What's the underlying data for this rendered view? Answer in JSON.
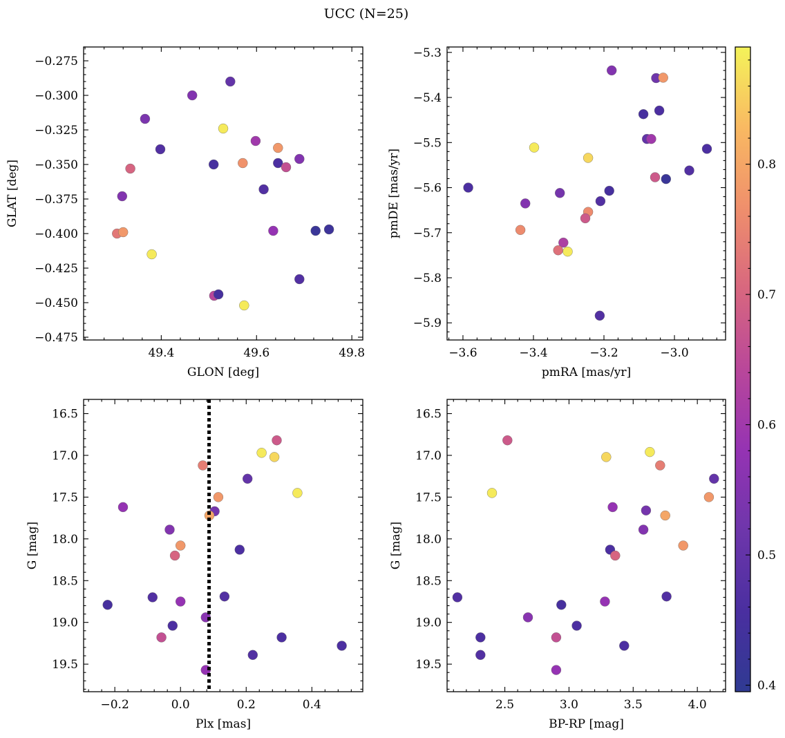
{
  "title": "UCC (N=25)",
  "colormap": {
    "name": "plasma",
    "range": [
      0.395,
      0.89
    ],
    "ticks": [
      0.4,
      0.5,
      0.6,
      0.7,
      0.8
    ],
    "tick_labels": [
      "0.4",
      "0.5",
      "0.6",
      "0.7",
      "0.8"
    ],
    "stops": [
      "#2f3a92",
      "#4a2fa0",
      "#6e36ab",
      "#9533b3",
      "#b9479a",
      "#d8677f",
      "#ef8f6c",
      "#f9b962",
      "#f4f35a"
    ]
  },
  "chart_data": [
    {
      "type": "scatter",
      "id": "glon-glat",
      "xlabel": "GLON [deg]",
      "ylabel": "GLAT [deg]",
      "xlim": [
        49.237,
        49.823
      ],
      "ylim": [
        -0.477,
        -0.265
      ],
      "y_inverted": false,
      "xticks": [
        49.4,
        49.6,
        49.8
      ],
      "xtick_labels": [
        "49.4",
        "49.6",
        "49.8"
      ],
      "yticks": [
        -0.475,
        -0.45,
        -0.425,
        -0.4,
        -0.375,
        -0.35,
        -0.325,
        -0.3,
        -0.275
      ],
      "ytick_labels": [
        "−0.475",
        "−0.450",
        "−0.425",
        "−0.400",
        "−0.375",
        "−0.350",
        "−0.325",
        "−0.300",
        "−0.275"
      ],
      "points": [
        {
          "x": 49.545,
          "y": -0.29,
          "c": 0.5
        },
        {
          "x": 49.465,
          "y": -0.3,
          "c": 0.55
        },
        {
          "x": 49.366,
          "y": -0.317,
          "c": 0.54
        },
        {
          "x": 49.53,
          "y": -0.324,
          "c": 0.88
        },
        {
          "x": 49.398,
          "y": -0.339,
          "c": 0.47
        },
        {
          "x": 49.598,
          "y": -0.333,
          "c": 0.6
        },
        {
          "x": 49.645,
          "y": -0.338,
          "c": 0.78
        },
        {
          "x": 49.69,
          "y": -0.346,
          "c": 0.55
        },
        {
          "x": 49.51,
          "y": -0.35,
          "c": 0.45
        },
        {
          "x": 49.571,
          "y": -0.349,
          "c": 0.77
        },
        {
          "x": 49.645,
          "y": -0.349,
          "c": 0.46
        },
        {
          "x": 49.662,
          "y": -0.352,
          "c": 0.66
        },
        {
          "x": 49.335,
          "y": -0.353,
          "c": 0.7
        },
        {
          "x": 49.615,
          "y": -0.368,
          "c": 0.47
        },
        {
          "x": 49.318,
          "y": -0.373,
          "c": 0.55
        },
        {
          "x": 49.307,
          "y": -0.4,
          "c": 0.73
        },
        {
          "x": 49.32,
          "y": -0.399,
          "c": 0.78
        },
        {
          "x": 49.635,
          "y": -0.398,
          "c": 0.58
        },
        {
          "x": 49.724,
          "y": -0.398,
          "c": 0.42
        },
        {
          "x": 49.752,
          "y": -0.397,
          "c": 0.43
        },
        {
          "x": 49.38,
          "y": -0.415,
          "c": 0.88
        },
        {
          "x": 49.69,
          "y": -0.433,
          "c": 0.47
        },
        {
          "x": 49.511,
          "y": -0.445,
          "c": 0.64
        },
        {
          "x": 49.52,
          "y": -0.444,
          "c": 0.45
        },
        {
          "x": 49.574,
          "y": -0.452,
          "c": 0.88
        }
      ]
    },
    {
      "type": "scatter",
      "id": "pmra-pmde",
      "xlabel": "pmRA [mas/yr]",
      "ylabel": "pmDE [mas/yr]",
      "xlim": [
        -3.645,
        -2.855
      ],
      "ylim": [
        -5.938,
        -5.288
      ],
      "y_inverted": false,
      "xticks": [
        -3.6,
        -3.4,
        -3.2,
        -3.0
      ],
      "xtick_labels": [
        "−3.6",
        "−3.4",
        "−3.2",
        "−3.0"
      ],
      "yticks": [
        -5.9,
        -5.8,
        -5.7,
        -5.6,
        -5.5,
        -5.4,
        -5.3
      ],
      "ytick_labels": [
        "−5.9",
        "−5.8",
        "−5.7",
        "−5.6",
        "−5.5",
        "−5.4",
        "−5.3"
      ],
      "points": [
        {
          "x": -3.178,
          "y": -5.34,
          "c": 0.55
        },
        {
          "x": -3.052,
          "y": -5.357,
          "c": 0.52
        },
        {
          "x": -3.032,
          "y": -5.356,
          "c": 0.78
        },
        {
          "x": -3.043,
          "y": -5.429,
          "c": 0.46
        },
        {
          "x": -3.088,
          "y": -5.437,
          "c": 0.45
        },
        {
          "x": -3.078,
          "y": -5.492,
          "c": 0.5
        },
        {
          "x": -3.066,
          "y": -5.492,
          "c": 0.6
        },
        {
          "x": -3.398,
          "y": -5.511,
          "c": 0.88
        },
        {
          "x": -2.908,
          "y": -5.514,
          "c": 0.46
        },
        {
          "x": -3.245,
          "y": -5.534,
          "c": 0.86
        },
        {
          "x": -2.958,
          "y": -5.562,
          "c": 0.47
        },
        {
          "x": -3.055,
          "y": -5.577,
          "c": 0.68
        },
        {
          "x": -3.024,
          "y": -5.581,
          "c": 0.42
        },
        {
          "x": -3.585,
          "y": -5.6,
          "c": 0.46
        },
        {
          "x": -3.185,
          "y": -5.607,
          "c": 0.45
        },
        {
          "x": -3.325,
          "y": -5.612,
          "c": 0.53
        },
        {
          "x": -3.21,
          "y": -5.63,
          "c": 0.47
        },
        {
          "x": -3.423,
          "y": -5.635,
          "c": 0.55
        },
        {
          "x": -3.245,
          "y": -5.654,
          "c": 0.76
        },
        {
          "x": -3.253,
          "y": -5.668,
          "c": 0.68
        },
        {
          "x": -3.437,
          "y": -5.694,
          "c": 0.76
        },
        {
          "x": -3.315,
          "y": -5.722,
          "c": 0.62
        },
        {
          "x": -3.33,
          "y": -5.739,
          "c": 0.72
        },
        {
          "x": -3.303,
          "y": -5.742,
          "c": 0.88
        },
        {
          "x": -3.212,
          "y": -5.884,
          "c": 0.47
        }
      ]
    },
    {
      "type": "scatter",
      "id": "plx-g",
      "xlabel": "Plx [mas]",
      "ylabel": "G [mag]",
      "xlim": [
        -0.295,
        0.555
      ],
      "ylim": [
        16.33,
        19.83
      ],
      "y_inverted": true,
      "vline": {
        "x": 0.087,
        "style": "dotted",
        "color": "#000000"
      },
      "xticks": [
        -0.2,
        0.0,
        0.2,
        0.4
      ],
      "xtick_labels": [
        "−0.2",
        "0.0",
        "0.2",
        "0.4"
      ],
      "yticks": [
        16.5,
        17.0,
        17.5,
        18.0,
        18.5,
        19.0,
        19.5
      ],
      "ytick_labels": [
        "16.5",
        "17.0",
        "17.5",
        "18.0",
        "18.5",
        "19.0",
        "19.5"
      ],
      "points": [
        {
          "x": 0.293,
          "y": 16.82,
          "c": 0.68
        },
        {
          "x": 0.247,
          "y": 16.97,
          "c": 0.88
        },
        {
          "x": 0.286,
          "y": 17.02,
          "c": 0.86
        },
        {
          "x": 0.068,
          "y": 17.12,
          "c": 0.74
        },
        {
          "x": 0.204,
          "y": 17.28,
          "c": 0.5
        },
        {
          "x": 0.356,
          "y": 17.45,
          "c": 0.88
        },
        {
          "x": 0.115,
          "y": 17.5,
          "c": 0.78
        },
        {
          "x": 0.104,
          "y": 17.67,
          "c": 0.53
        },
        {
          "x": -0.175,
          "y": 17.62,
          "c": 0.58
        },
        {
          "x": 0.088,
          "y": 17.72,
          "c": 0.8
        },
        {
          "x": -0.033,
          "y": 17.89,
          "c": 0.55
        },
        {
          "x": 0.0,
          "y": 18.08,
          "c": 0.78
        },
        {
          "x": 0.18,
          "y": 18.13,
          "c": 0.46
        },
        {
          "x": -0.017,
          "y": 18.2,
          "c": 0.7
        },
        {
          "x": 0.134,
          "y": 18.69,
          "c": 0.47
        },
        {
          "x": -0.085,
          "y": 18.7,
          "c": 0.47
        },
        {
          "x": 0.0,
          "y": 18.75,
          "c": 0.58
        },
        {
          "x": -0.222,
          "y": 18.79,
          "c": 0.45
        },
        {
          "x": 0.077,
          "y": 18.94,
          "c": 0.56
        },
        {
          "x": -0.024,
          "y": 19.04,
          "c": 0.46
        },
        {
          "x": -0.058,
          "y": 19.18,
          "c": 0.66
        },
        {
          "x": 0.308,
          "y": 19.18,
          "c": 0.46
        },
        {
          "x": 0.491,
          "y": 19.28,
          "c": 0.46
        },
        {
          "x": 0.22,
          "y": 19.39,
          "c": 0.47
        },
        {
          "x": 0.077,
          "y": 19.57,
          "c": 0.58
        }
      ]
    },
    {
      "type": "scatter",
      "id": "bprp-g",
      "xlabel": "BP-RP [mag]",
      "ylabel": "G [mag]",
      "xlim": [
        2.05,
        4.22
      ],
      "ylim": [
        16.33,
        19.83
      ],
      "y_inverted": true,
      "xticks": [
        2.5,
        3.0,
        3.5,
        4.0
      ],
      "xtick_labels": [
        "2.5",
        "3.0",
        "3.5",
        "4.0"
      ],
      "yticks": [
        16.5,
        17.0,
        17.5,
        18.0,
        18.5,
        19.0,
        19.5
      ],
      "ytick_labels": [
        "16.5",
        "17.0",
        "17.5",
        "18.0",
        "18.5",
        "19.0",
        "19.5"
      ],
      "points": [
        {
          "x": 2.52,
          "y": 16.82,
          "c": 0.68
        },
        {
          "x": 3.63,
          "y": 16.96,
          "c": 0.88
        },
        {
          "x": 3.29,
          "y": 17.02,
          "c": 0.86
        },
        {
          "x": 3.71,
          "y": 17.12,
          "c": 0.74
        },
        {
          "x": 4.13,
          "y": 17.28,
          "c": 0.5
        },
        {
          "x": 2.4,
          "y": 17.45,
          "c": 0.88
        },
        {
          "x": 4.09,
          "y": 17.5,
          "c": 0.78
        },
        {
          "x": 3.34,
          "y": 17.62,
          "c": 0.58
        },
        {
          "x": 3.6,
          "y": 17.66,
          "c": 0.53
        },
        {
          "x": 3.75,
          "y": 17.72,
          "c": 0.8
        },
        {
          "x": 3.58,
          "y": 17.89,
          "c": 0.55
        },
        {
          "x": 3.89,
          "y": 18.08,
          "c": 0.78
        },
        {
          "x": 3.32,
          "y": 18.13,
          "c": 0.46
        },
        {
          "x": 3.36,
          "y": 18.2,
          "c": 0.7
        },
        {
          "x": 2.13,
          "y": 18.7,
          "c": 0.47
        },
        {
          "x": 3.76,
          "y": 18.69,
          "c": 0.47
        },
        {
          "x": 3.28,
          "y": 18.75,
          "c": 0.58
        },
        {
          "x": 2.94,
          "y": 18.79,
          "c": 0.45
        },
        {
          "x": 2.68,
          "y": 18.94,
          "c": 0.56
        },
        {
          "x": 3.06,
          "y": 19.04,
          "c": 0.46
        },
        {
          "x": 2.31,
          "y": 19.18,
          "c": 0.46
        },
        {
          "x": 2.9,
          "y": 19.18,
          "c": 0.66
        },
        {
          "x": 3.43,
          "y": 19.28,
          "c": 0.46
        },
        {
          "x": 2.31,
          "y": 19.39,
          "c": 0.47
        },
        {
          "x": 2.9,
          "y": 19.57,
          "c": 0.58
        }
      ]
    }
  ]
}
